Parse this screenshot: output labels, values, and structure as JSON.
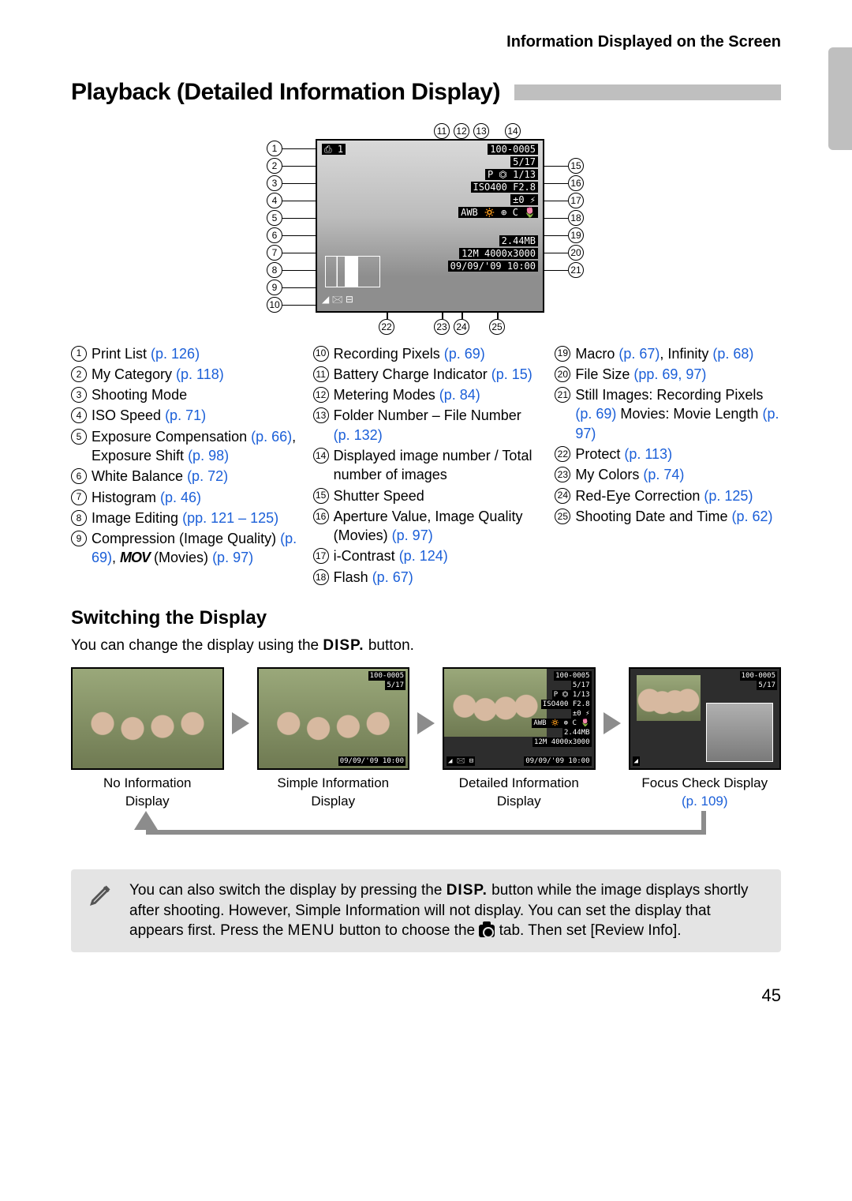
{
  "running_head": "Information Displayed on the Screen",
  "title": "Playback (Detailed Information Display)",
  "lcd": {
    "top_left": "⎙ 1",
    "file_no": "100-0005",
    "count": "5/17",
    "mode_line": "P ⏣ 1/13",
    "iso_line": "ISO400   F2.8",
    "ev_line": "±0 ⚡",
    "wb_line": "AWB 🔅 ⊕ C 🌷",
    "size_line": "2.44MB",
    "pixels_line": "12M 4000x3000",
    "date_line": "09/09/'09 10:00",
    "batt": "▮▮▮"
  },
  "legend_cols": [
    [
      {
        "n": "1",
        "parts": [
          {
            "t": "Print List "
          },
          {
            "t": "(p. 126)",
            "r": true
          }
        ]
      },
      {
        "n": "2",
        "parts": [
          {
            "t": "My Category "
          },
          {
            "t": "(p. 118)",
            "r": true
          }
        ]
      },
      {
        "n": "3",
        "parts": [
          {
            "t": "Shooting Mode"
          }
        ]
      },
      {
        "n": "4",
        "parts": [
          {
            "t": "ISO Speed "
          },
          {
            "t": "(p. 71)",
            "r": true
          }
        ]
      },
      {
        "n": "5",
        "parts": [
          {
            "t": "Exposure Compensation "
          },
          {
            "t": "(p. 66)",
            "r": true
          },
          {
            "t": ", Exposure Shift "
          },
          {
            "t": "(p. 98)",
            "r": true
          }
        ]
      },
      {
        "n": "6",
        "parts": [
          {
            "t": "White Balance "
          },
          {
            "t": "(p. 72)",
            "r": true
          }
        ]
      },
      {
        "n": "7",
        "parts": [
          {
            "t": "Histogram "
          },
          {
            "t": "(p. 46)",
            "r": true
          }
        ]
      },
      {
        "n": "8",
        "parts": [
          {
            "t": "Image Editing "
          },
          {
            "t": "(pp. 121 – 125)",
            "r": true
          }
        ]
      },
      {
        "n": "9",
        "parts": [
          {
            "t": "Compression (Image Quality) "
          },
          {
            "t": "(p. 69)",
            "r": true
          },
          {
            "t": ", "
          },
          {
            "mov": true
          },
          {
            "t": " (Movies) "
          },
          {
            "t": "(p. 97)",
            "r": true
          }
        ]
      }
    ],
    [
      {
        "n": "10",
        "parts": [
          {
            "t": "Recording Pixels "
          },
          {
            "t": "(p. 69)",
            "r": true
          }
        ]
      },
      {
        "n": "11",
        "parts": [
          {
            "t": "Battery Charge Indicator "
          },
          {
            "t": "(p. 15)",
            "r": true
          }
        ]
      },
      {
        "n": "12",
        "parts": [
          {
            "t": "Metering Modes "
          },
          {
            "t": "(p. 84)",
            "r": true
          }
        ]
      },
      {
        "n": "13",
        "parts": [
          {
            "t": "Folder Number – File Number "
          },
          {
            "t": "(p. 132)",
            "r": true
          }
        ]
      },
      {
        "n": "14",
        "parts": [
          {
            "t": "Displayed image number / Total number of images"
          }
        ]
      },
      {
        "n": "15",
        "parts": [
          {
            "t": "Shutter Speed"
          }
        ]
      },
      {
        "n": "16",
        "parts": [
          {
            "t": "Aperture Value, Image Quality (Movies) "
          },
          {
            "t": "(p. 97)",
            "r": true
          }
        ]
      },
      {
        "n": "17",
        "parts": [
          {
            "t": "i-Contrast "
          },
          {
            "t": "(p. 124)",
            "r": true
          }
        ]
      },
      {
        "n": "18",
        "parts": [
          {
            "t": "Flash "
          },
          {
            "t": "(p. 67)",
            "r": true
          }
        ]
      }
    ],
    [
      {
        "n": "19",
        "parts": [
          {
            "t": "Macro "
          },
          {
            "t": "(p. 67)",
            "r": true
          },
          {
            "t": ", Infinity "
          },
          {
            "t": "(p. 68)",
            "r": true
          }
        ]
      },
      {
        "n": "20",
        "parts": [
          {
            "t": "File Size "
          },
          {
            "t": "(pp. 69, 97)",
            "r": true
          }
        ]
      },
      {
        "n": "21",
        "parts": [
          {
            "t": "Still Images: Recording Pixels "
          },
          {
            "t": "(p. 69)",
            "r": true
          },
          {
            "t": " Movies: Movie Length "
          },
          {
            "t": "(p. 97)",
            "r": true
          }
        ]
      },
      {
        "n": "22",
        "parts": [
          {
            "t": "Protect "
          },
          {
            "t": "(p. 113)",
            "r": true
          }
        ]
      },
      {
        "n": "23",
        "parts": [
          {
            "t": "My Colors "
          },
          {
            "t": "(p. 74)",
            "r": true
          }
        ]
      },
      {
        "n": "24",
        "parts": [
          {
            "t": "Red-Eye Correction "
          },
          {
            "t": "(p. 125)",
            "r": true
          }
        ]
      },
      {
        "n": "25",
        "parts": [
          {
            "t": "Shooting Date and Time "
          },
          {
            "t": "(p. 62)",
            "r": true
          }
        ]
      }
    ]
  ],
  "switching": {
    "heading": "Switching the Display",
    "desc_pre": "You can change the display using the ",
    "disp": "DISP.",
    "desc_post": " button."
  },
  "modes": [
    {
      "label_l1": "No Information",
      "label_l2": "Display",
      "ref": ""
    },
    {
      "label_l1": "Simple Information",
      "label_l2": "Display",
      "ref": ""
    },
    {
      "label_l1": "Detailed Information",
      "label_l2": "Display",
      "ref": ""
    },
    {
      "label_l1": "Focus Check Display",
      "label_l2": "",
      "ref": "(p. 109)"
    }
  ],
  "thumb_overlays": {
    "file_no": "100-0005",
    "count": "5/17",
    "date": "09/09/'09 10:00"
  },
  "note": {
    "l1_pre": "You can also switch the display by pressing the ",
    "l1_post": " button while the image displays shortly after shooting. However, Simple Information will not display. You can set the display that appears first. Press the ",
    "menu": "MENU",
    "l2_pre": " button to choose the ",
    "l2_post": " tab. Then set [Review Info]."
  },
  "page": "45"
}
